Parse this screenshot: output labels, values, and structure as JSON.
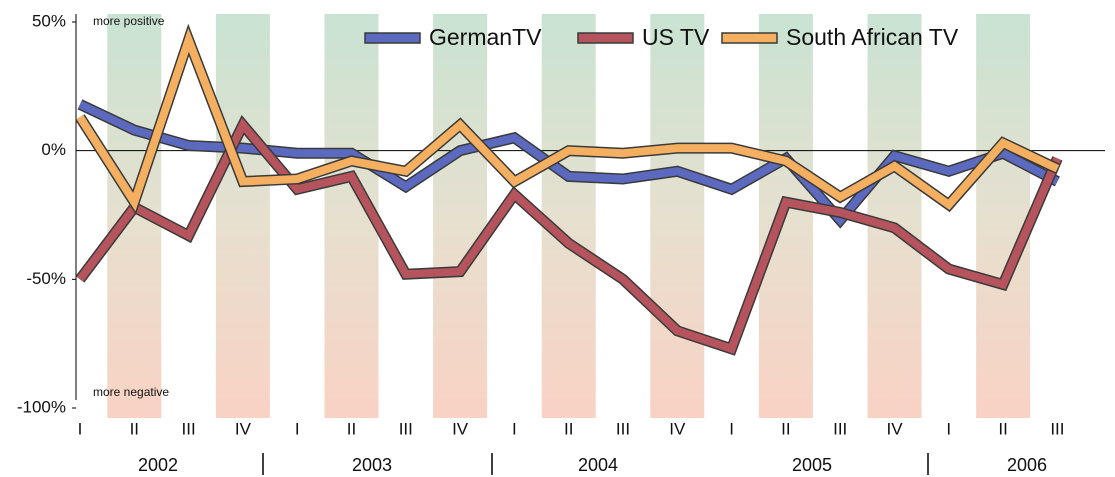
{
  "chart_data": {
    "type": "line",
    "categories": [
      "I",
      "II",
      "III",
      "IV",
      "I",
      "II",
      "III",
      "IV",
      "I",
      "II",
      "III",
      "IV",
      "I",
      "II",
      "III",
      "IV",
      "I",
      "II",
      "III"
    ],
    "years": [
      "2002",
      "2003",
      "2004",
      "2005",
      "2006"
    ],
    "annotations": [
      "more positive",
      "more negative"
    ],
    "series": [
      {
        "name": "GermanTV",
        "color": "#5b6abf",
        "values": [
          18,
          8,
          2,
          1,
          -1,
          -1,
          -14,
          0,
          5,
          -10,
          -11,
          -8,
          -15,
          -3,
          -27,
          -2,
          -8,
          -1,
          -12
        ]
      },
      {
        "name": "US TV",
        "color": "#b5545c",
        "values": [
          -50,
          -22,
          -33,
          10,
          -15,
          -10,
          -48,
          -47,
          -17,
          -36,
          -50,
          -70,
          -77,
          -20,
          -24,
          -30,
          -46,
          -52,
          -3
        ]
      },
      {
        "name": "South African TV",
        "color": "#f4b060",
        "values": [
          13,
          -20,
          43,
          -12,
          -11,
          -4,
          -8,
          10,
          -12,
          0,
          -1,
          1,
          1,
          -4,
          -18,
          -6,
          -21,
          3,
          -7
        ]
      }
    ],
    "ylim": [
      -100,
      50
    ],
    "yticks": [
      {
        "value": -100,
        "label": "-100%"
      },
      {
        "value": -50,
        "label": "-50%"
      },
      {
        "value": 0,
        "label": "0%"
      },
      {
        "value": 50,
        "label": "50%"
      }
    ],
    "grid": false
  }
}
